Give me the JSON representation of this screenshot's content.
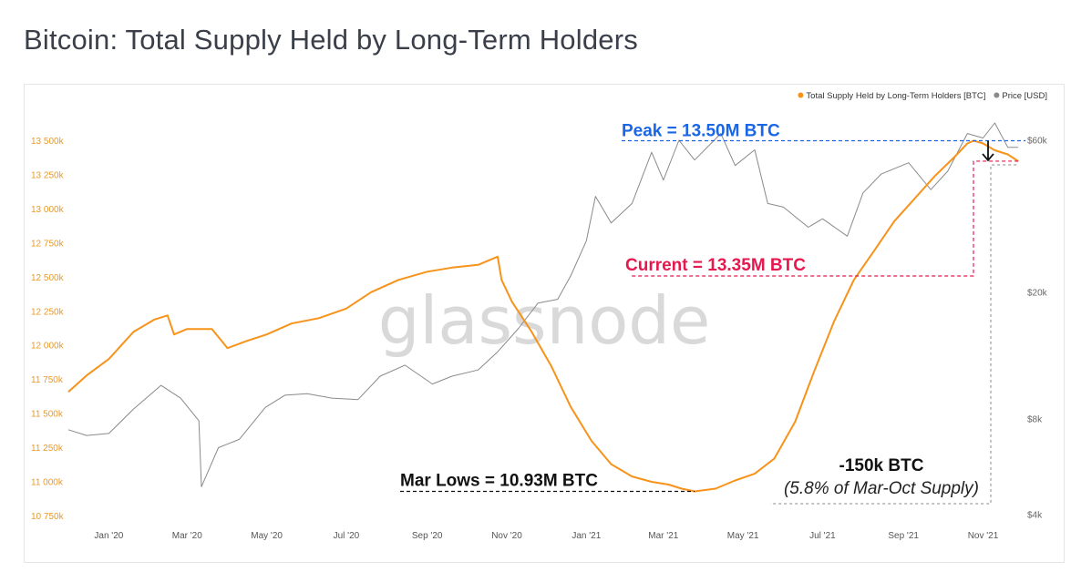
{
  "title": "Bitcoin: Total Supply Held by Long-Term Holders",
  "watermark": "glassnode",
  "colors": {
    "lth_supply": "#f7931a",
    "price": "#8a8a8a",
    "peak": "#1a66e6",
    "current": "#e6194f",
    "lows": "#111111",
    "diff": "#888888"
  },
  "chart_data": {
    "type": "line",
    "title": "Bitcoin: Total Supply Held by Long-Term Holders",
    "legend": [
      {
        "name": "Total Supply Held by Long-Term Holders [BTC]",
        "color": "#f7931a"
      },
      {
        "name": "Price [USD]",
        "color": "#8a8a8a"
      }
    ],
    "legend_position": "top-right",
    "x_ticks": [
      "Jan '20",
      "Mar '20",
      "May '20",
      "Jul '20",
      "Sep '20",
      "Nov '20",
      "Jan '21",
      "Mar '21",
      "May '21",
      "Jul '21",
      "Sep '21",
      "Nov '21"
    ],
    "x_tick_dates": [
      "2020-01-01",
      "2020-03-01",
      "2020-05-01",
      "2020-07-01",
      "2020-09-01",
      "2020-11-01",
      "2021-01-01",
      "2021-03-01",
      "2021-05-01",
      "2021-07-01",
      "2021-09-01",
      "2021-11-01"
    ],
    "xlim": [
      "2019-12-01",
      "2021-11-30"
    ],
    "y_left": {
      "ticks": [
        "10 750k",
        "11 000k",
        "11 250k",
        "11 500k",
        "11 750k",
        "12 000k",
        "12 250k",
        "12 500k",
        "12 750k",
        "13 000k",
        "13 250k",
        "13 500k"
      ],
      "tick_values": [
        10750000,
        11000000,
        11250000,
        11500000,
        11750000,
        12000000,
        12250000,
        12500000,
        12750000,
        13000000,
        13250000,
        13500000
      ],
      "ylim": [
        10720000,
        13630000
      ]
    },
    "y_right": {
      "scale": "log",
      "ticks": [
        "$4k",
        "$8k",
        "$20k",
        "$60k"
      ],
      "tick_values": [
        4000,
        8000,
        20000,
        60000
      ],
      "ylim": [
        3850,
        68000
      ]
    },
    "grid": false,
    "series": [
      {
        "name": "Total Supply Held by Long-Term Holders [BTC]",
        "axis": "left",
        "x": [
          "2019-12-01",
          "2019-12-15",
          "2020-01-01",
          "2020-01-20",
          "2020-02-05",
          "2020-02-15",
          "2020-02-20",
          "2020-03-01",
          "2020-03-20",
          "2020-04-01",
          "2020-04-15",
          "2020-05-01",
          "2020-05-20",
          "2020-06-10",
          "2020-07-01",
          "2020-07-20",
          "2020-08-10",
          "2020-09-01",
          "2020-09-20",
          "2020-10-10",
          "2020-10-25",
          "2020-10-28",
          "2020-11-05",
          "2020-11-20",
          "2020-12-05",
          "2020-12-20",
          "2021-01-05",
          "2021-01-20",
          "2021-02-05",
          "2021-02-20",
          "2021-03-05",
          "2021-03-15",
          "2021-03-25",
          "2021-04-10",
          "2021-04-25",
          "2021-05-10",
          "2021-05-25",
          "2021-06-10",
          "2021-06-25",
          "2021-07-10",
          "2021-07-25",
          "2021-08-10",
          "2021-08-25",
          "2021-09-10",
          "2021-09-25",
          "2021-10-10",
          "2021-10-20",
          "2021-10-25",
          "2021-11-01",
          "2021-11-10",
          "2021-11-20",
          "2021-11-28"
        ],
        "values": [
          11660000,
          11780000,
          11900000,
          12100000,
          12190000,
          12220000,
          12080000,
          12120000,
          12120000,
          11980000,
          12030000,
          12080000,
          12160000,
          12200000,
          12270000,
          12390000,
          12480000,
          12540000,
          12570000,
          12590000,
          12650000,
          12480000,
          12320000,
          12100000,
          11850000,
          11550000,
          11300000,
          11130000,
          11040000,
          11000000,
          10980000,
          10950000,
          10930000,
          10950000,
          11010000,
          11060000,
          11170000,
          11440000,
          11820000,
          12180000,
          12480000,
          12700000,
          12910000,
          13080000,
          13240000,
          13380000,
          13480000,
          13500000,
          13480000,
          13430000,
          13400000,
          13350000
        ]
      },
      {
        "name": "Price [USD]",
        "axis": "right",
        "x": [
          "2019-12-01",
          "2019-12-15",
          "2020-01-01",
          "2020-01-20",
          "2020-02-10",
          "2020-02-25",
          "2020-03-10",
          "2020-03-12",
          "2020-03-25",
          "2020-04-10",
          "2020-04-30",
          "2020-05-15",
          "2020-06-01",
          "2020-06-20",
          "2020-07-10",
          "2020-07-27",
          "2020-08-15",
          "2020-09-05",
          "2020-09-20",
          "2020-10-10",
          "2020-10-25",
          "2020-11-10",
          "2020-11-25",
          "2020-12-10",
          "2020-12-20",
          "2021-01-01",
          "2021-01-08",
          "2021-01-20",
          "2021-02-05",
          "2021-02-20",
          "2021-03-01",
          "2021-03-13",
          "2021-03-25",
          "2021-04-14",
          "2021-04-25",
          "2021-05-10",
          "2021-05-20",
          "2021-06-01",
          "2021-06-20",
          "2021-07-01",
          "2021-07-20",
          "2021-08-01",
          "2021-08-15",
          "2021-09-05",
          "2021-09-22",
          "2021-10-05",
          "2021-10-20",
          "2021-11-01",
          "2021-11-10",
          "2021-11-20",
          "2021-11-28"
        ],
        "values": [
          7400,
          7100,
          7200,
          8600,
          10200,
          9300,
          7900,
          4900,
          6500,
          6900,
          8700,
          9500,
          9600,
          9300,
          9200,
          10900,
          11800,
          10300,
          10900,
          11400,
          13000,
          15400,
          18500,
          19000,
          22500,
          29000,
          40000,
          33000,
          38000,
          55000,
          45000,
          60000,
          52000,
          63000,
          50000,
          56000,
          38000,
          37000,
          32000,
          34000,
          30000,
          41000,
          47000,
          51000,
          42000,
          48000,
          63000,
          61000,
          68000,
          57000,
          57000
        ]
      }
    ],
    "annotations": [
      {
        "text": "Peak = 13.50M BTC",
        "value": 13500000,
        "color": "#1a66e6"
      },
      {
        "text": "Current = 13.35M BTC",
        "value": 13350000,
        "color": "#e6194f"
      },
      {
        "text": "Mar Lows = 10.93M BTC",
        "value": 10930000,
        "color": "#111111"
      },
      {
        "text": "-150k BTC",
        "value": -150000,
        "color": "#111111"
      },
      {
        "text": "(5.8% of Mar-Oct Supply)",
        "color": "#111111"
      }
    ]
  }
}
